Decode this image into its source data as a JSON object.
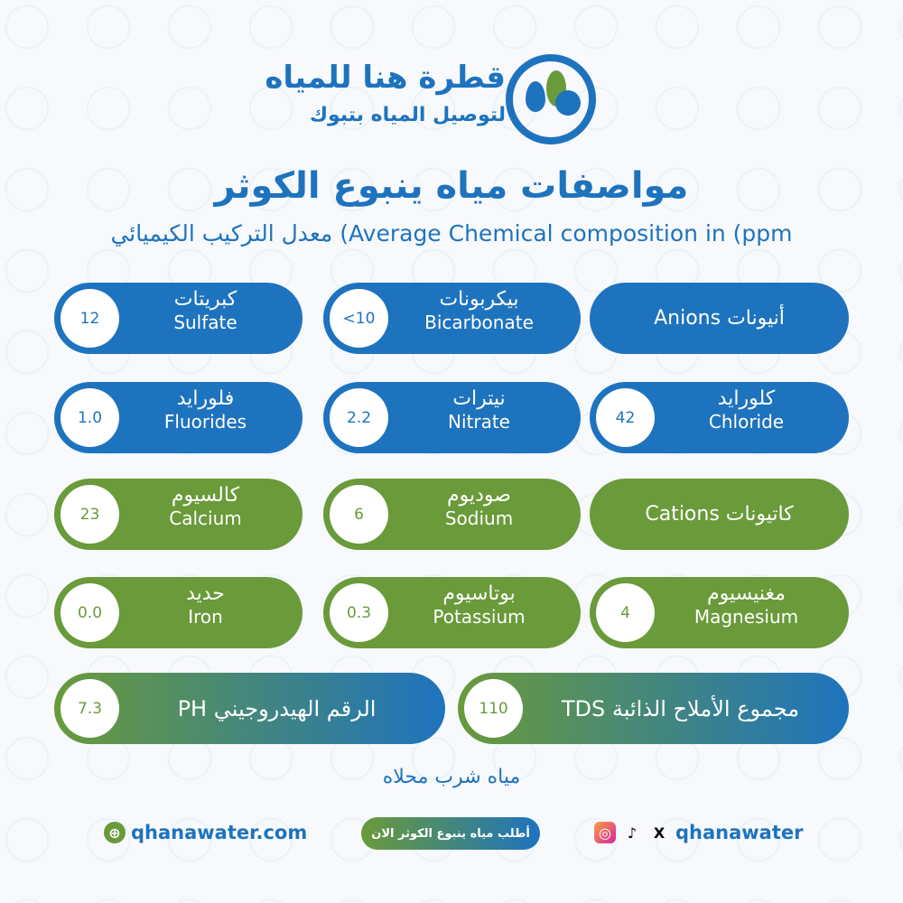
{
  "brand": {
    "name": "قطرة هنا للمياه",
    "tagline": "لتوصيل المياه بتبوك"
  },
  "title": "مواصفات مياه ينبوع الكوثر",
  "subtitle": "معدل التركيب الكيميائي (Average Chemical composition in (ppm",
  "colors": {
    "blue": "#1e73be",
    "green": "#6a9a3a"
  },
  "anions": {
    "header": "أنيونات Anions",
    "items": [
      {
        "ar": "بيكربونات",
        "en": "Bicarbonate",
        "value": "<10"
      },
      {
        "ar": "كبريتات",
        "en": "Sulfate",
        "value": "12"
      },
      {
        "ar": "كلورايد",
        "en": "Chloride",
        "value": "42"
      },
      {
        "ar": "نيترات",
        "en": "Nitrate",
        "value": "2.2"
      },
      {
        "ar": "فلورايد",
        "en": "Fluorides",
        "value": "1.0"
      }
    ]
  },
  "cations": {
    "header": "كاتيونات Cations",
    "items": [
      {
        "ar": "صوديوم",
        "en": "Sodium",
        "value": "6"
      },
      {
        "ar": "كالسيوم",
        "en": "Calcium",
        "value": "23"
      },
      {
        "ar": "مغنيسيوم",
        "en": "Magnesium",
        "value": "4"
      },
      {
        "ar": "بوتاسيوم",
        "en": "Potassium",
        "value": "0.3"
      },
      {
        "ar": "حديد",
        "en": "Iron",
        "value": "0.0"
      }
    ]
  },
  "tds": {
    "label": "مجموع الأملاح الذائبة TDS",
    "value": "110"
  },
  "ph": {
    "label": "الرقم الهيدروجيني PH",
    "value": "7.3"
  },
  "tagline": "مياه شرب محلاه",
  "footer": {
    "website": "qhanawater.com",
    "order_button": "أطلب مياه ينبوع الكوثر الان",
    "social_handle": "qhanawater"
  }
}
